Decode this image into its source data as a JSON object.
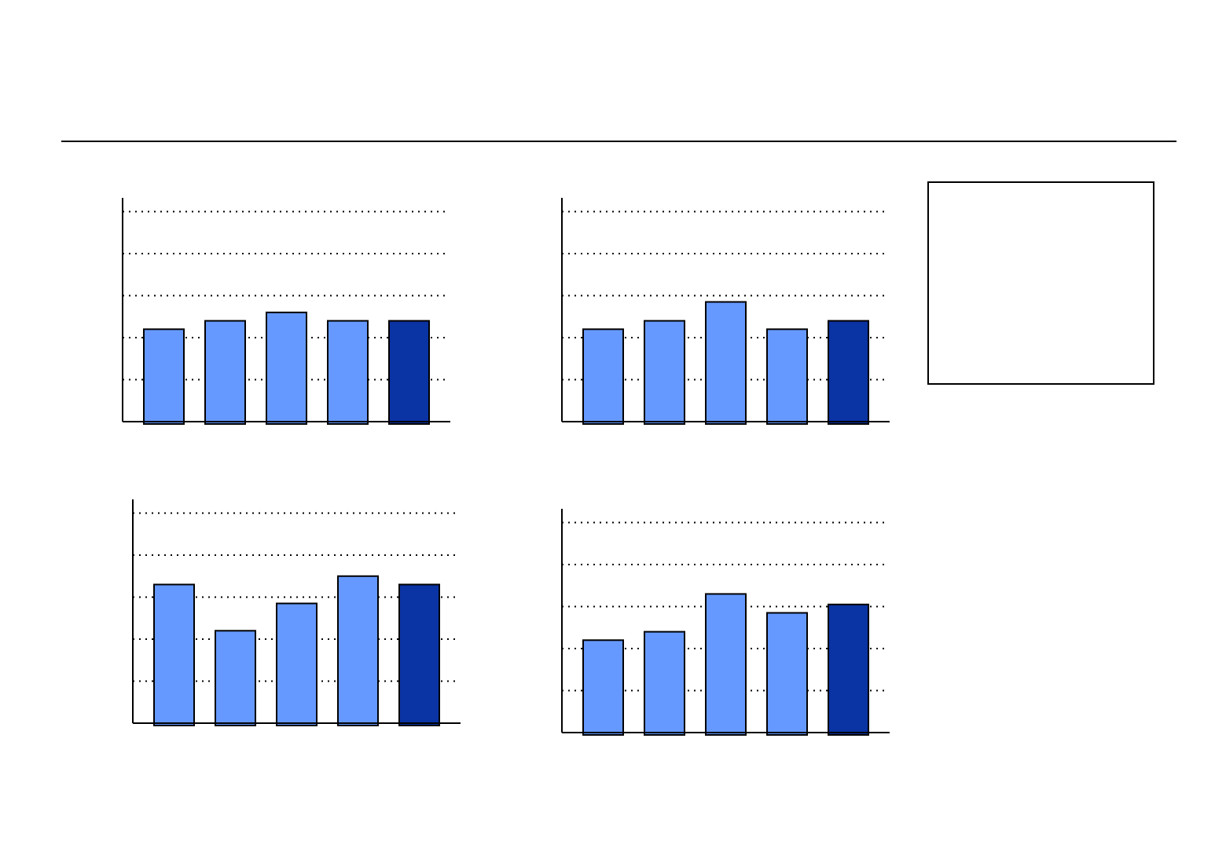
{
  "chart_data": [
    {
      "type": "bar",
      "categories": [
        null,
        null,
        null,
        null,
        null
      ],
      "values": [
        2.2,
        2.4,
        2.6,
        2.4,
        2.4
      ],
      "colors": [
        "#6699ff",
        "#6699ff",
        "#6699ff",
        "#6699ff",
        "#0a33a3"
      ],
      "ylim": [
        0,
        5.3
      ],
      "yticks": [
        1,
        2,
        3,
        4,
        5
      ],
      "grid": true
    },
    {
      "type": "bar",
      "categories": [
        null,
        null,
        null,
        null,
        null
      ],
      "values": [
        2.2,
        2.4,
        2.85,
        2.2,
        2.4
      ],
      "colors": [
        "#6699ff",
        "#6699ff",
        "#6699ff",
        "#6699ff",
        "#0a33a3"
      ],
      "ylim": [
        0,
        5.3
      ],
      "yticks": [
        1,
        2,
        3,
        4,
        5
      ],
      "grid": true
    },
    {
      "type": "bar",
      "categories": [
        null,
        null,
        null,
        null,
        null
      ],
      "values": [
        3.3,
        2.2,
        2.85,
        3.5,
        3.3
      ],
      "colors": [
        "#6699ff",
        "#6699ff",
        "#6699ff",
        "#6699ff",
        "#0a33a3"
      ],
      "ylim": [
        0,
        5.3
      ],
      "yticks": [
        1,
        2,
        3,
        4,
        5
      ],
      "grid": true
    },
    {
      "type": "bar",
      "categories": [
        null,
        null,
        null,
        null,
        null
      ],
      "values": [
        2.2,
        2.4,
        3.3,
        2.85,
        3.05
      ],
      "colors": [
        "#6699ff",
        "#6699ff",
        "#6699ff",
        "#6699ff",
        "#0a33a3"
      ],
      "ylim": [
        0,
        5.3
      ],
      "yticks": [
        1,
        2,
        3,
        4,
        5
      ],
      "grid": true
    }
  ]
}
